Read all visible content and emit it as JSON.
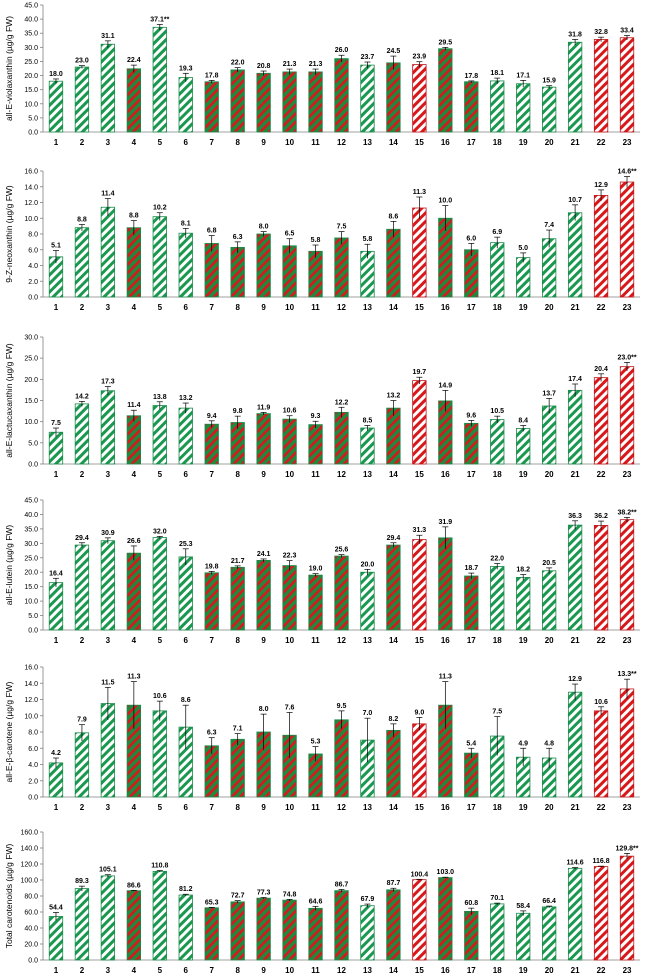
{
  "colors": {
    "green": "#1a9850",
    "red": "#d7191c",
    "edge_green": "#1a8a4a",
    "edge_red": "#c0181c",
    "hatch_green": "#1a9850",
    "hatch_red": "#d7191c"
  },
  "chart_data": [
    {
      "type": "bar",
      "ylabel": "all-E-violaxanthin (µg/g FW)",
      "ylim": [
        0,
        45
      ],
      "yticks": [
        "0.0",
        "5.0",
        "10.0",
        "15.0",
        "20.0",
        "25.0",
        "30.0",
        "35.0",
        "40.0",
        "45.0"
      ],
      "categories": [
        "1",
        "2",
        "3",
        "4",
        "5",
        "6",
        "7",
        "8",
        "9",
        "10",
        "11",
        "12",
        "13",
        "14",
        "15",
        "16",
        "17",
        "18",
        "19",
        "20",
        "21",
        "22",
        "23"
      ],
      "values": [
        18.0,
        23.0,
        31.1,
        22.4,
        37.1,
        19.3,
        17.8,
        22.0,
        20.8,
        21.3,
        21.3,
        26.0,
        23.7,
        24.5,
        23.9,
        29.5,
        17.8,
        18.1,
        17.1,
        15.9,
        31.8,
        32.8,
        33.4
      ],
      "errors": [
        0.8,
        0.5,
        1.2,
        1.3,
        1.0,
        1.5,
        0.5,
        0.8,
        0.8,
        1.0,
        1.0,
        1.2,
        1.1,
        2.4,
        1.0,
        0.5,
        0.3,
        1.0,
        1.2,
        0.5,
        1.0,
        0.8,
        0.8
      ],
      "labels": [
        "18.0",
        "23.0",
        "31.1",
        "22.4",
        "37.1**",
        "19.3",
        "17.8",
        "22.0",
        "20.8",
        "21.3",
        "21.3",
        "26.0",
        "23.7",
        "24.5",
        "23.9",
        "29.5",
        "17.8",
        "18.1",
        "17.1",
        "15.9",
        "31.8",
        "32.8",
        "33.4"
      ],
      "styles": [
        "gw",
        "gw",
        "gw",
        "gr",
        "gw",
        "gw",
        "gr",
        "gr",
        "gr",
        "gr",
        "gr",
        "gr",
        "gw",
        "gr",
        "rw",
        "gr",
        "gr",
        "gw",
        "gw",
        "gw",
        "gw",
        "rw",
        "rw"
      ]
    },
    {
      "type": "bar",
      "ylabel": "9-Z-neoxanthin (µg/g FW)",
      "ylim": [
        0,
        16
      ],
      "yticks": [
        "0.0",
        "2.0",
        "4.0",
        "6.0",
        "8.0",
        "10.0",
        "12.0",
        "14.0",
        "16.0"
      ],
      "categories": [
        "1",
        "2",
        "3",
        "4",
        "5",
        "6",
        "7",
        "8",
        "9",
        "10",
        "11",
        "12",
        "13",
        "14",
        "15",
        "16",
        "17",
        "18",
        "19",
        "20",
        "21",
        "22",
        "23"
      ],
      "values": [
        5.1,
        8.8,
        11.4,
        8.8,
        10.2,
        8.1,
        6.8,
        6.3,
        8.0,
        6.5,
        5.8,
        7.5,
        5.8,
        8.6,
        11.3,
        10.0,
        6.0,
        6.9,
        5.0,
        7.4,
        10.7,
        12.9,
        14.6
      ],
      "errors": [
        0.8,
        0.4,
        1.1,
        0.9,
        0.5,
        0.6,
        1.0,
        0.7,
        0.3,
        0.9,
        0.8,
        0.8,
        0.9,
        1.0,
        1.4,
        1.6,
        0.8,
        0.7,
        0.6,
        1.1,
        1.0,
        0.7,
        0.7
      ],
      "labels": [
        "5.1",
        "8.8",
        "11.4",
        "8.8",
        "10.2",
        "8.1",
        "6.8",
        "6.3",
        "8.0",
        "6.5",
        "5.8",
        "7.5",
        "5.8",
        "8.6",
        "11.3",
        "10.0",
        "6.0",
        "6.9",
        "5.0",
        "7.4",
        "10.7",
        "12.9",
        "14.6**"
      ],
      "styles": [
        "gw",
        "gw",
        "gw",
        "gr",
        "gw",
        "gw",
        "gr",
        "gr",
        "gr",
        "gr",
        "gr",
        "gr",
        "gw",
        "gr",
        "rw",
        "gr",
        "gr",
        "gw",
        "gw",
        "gw",
        "gw",
        "rw",
        "rw"
      ]
    },
    {
      "type": "bar",
      "ylabel": "all-E-lactucaxanthin (µg/g FW)",
      "ylim": [
        0,
        30
      ],
      "yticks": [
        "0.0",
        "5.0",
        "10.0",
        "15.0",
        "20.0",
        "25.0",
        "30.0"
      ],
      "categories": [
        "1",
        "2",
        "3",
        "4",
        "5",
        "6",
        "7",
        "8",
        "9",
        "10",
        "11",
        "12",
        "13",
        "14",
        "15",
        "16",
        "17",
        "18",
        "19",
        "20",
        "21",
        "22",
        "23"
      ],
      "values": [
        7.5,
        14.2,
        17.3,
        11.4,
        13.8,
        13.2,
        9.4,
        9.8,
        11.9,
        10.6,
        9.3,
        12.2,
        8.5,
        13.2,
        19.7,
        14.9,
        9.6,
        10.5,
        8.4,
        13.7,
        17.4,
        20.4,
        23.0
      ],
      "errors": [
        1.0,
        0.6,
        1.0,
        1.3,
        0.9,
        1.2,
        0.8,
        1.5,
        0.3,
        0.8,
        0.8,
        1.2,
        0.6,
        1.8,
        0.8,
        2.5,
        0.7,
        0.8,
        0.7,
        1.8,
        1.5,
        0.9,
        1.0
      ],
      "labels": [
        "7.5",
        "14.2",
        "17.3",
        "11.4",
        "13.8",
        "13.2",
        "9.4",
        "9.8",
        "11.9",
        "10.6",
        "9.3",
        "12.2",
        "8.5",
        "13.2",
        "19.7",
        "14.9",
        "9.6",
        "10.5",
        "8.4",
        "13.7",
        "17.4",
        "20.4",
        "23.0**"
      ],
      "styles": [
        "gw",
        "gw",
        "gw",
        "gr",
        "gw",
        "gw",
        "gr",
        "gr",
        "gr",
        "gr",
        "gr",
        "gr",
        "gw",
        "gr",
        "rw",
        "gr",
        "gr",
        "gw",
        "gw",
        "gw",
        "gw",
        "rw",
        "rw"
      ]
    },
    {
      "type": "bar",
      "ylabel": "all-E-lutein (µg/g FW)",
      "ylim": [
        0,
        45
      ],
      "yticks": [
        "0.0",
        "5.0",
        "10.0",
        "15.0",
        "20.0",
        "25.0",
        "30.0",
        "35.0",
        "40.0",
        "45.0"
      ],
      "categories": [
        "1",
        "2",
        "3",
        "4",
        "5",
        "6",
        "7",
        "8",
        "9",
        "10",
        "11",
        "12",
        "13",
        "14",
        "15",
        "16",
        "17",
        "18",
        "19",
        "20",
        "21",
        "22",
        "23"
      ],
      "values": [
        16.4,
        29.4,
        30.9,
        26.6,
        32.0,
        25.3,
        19.8,
        21.7,
        24.1,
        22.3,
        19.0,
        25.6,
        20.0,
        29.4,
        31.3,
        31.9,
        18.7,
        22.0,
        18.2,
        20.5,
        36.3,
        36.2,
        38.2
      ],
      "errors": [
        1.5,
        0.8,
        1.0,
        2.5,
        0.4,
        2.8,
        0.5,
        0.5,
        0.5,
        1.7,
        0.5,
        0.5,
        1.0,
        0.8,
        1.5,
        3.8,
        1.0,
        1.0,
        1.0,
        1.0,
        1.5,
        1.5,
        0.8
      ],
      "labels": [
        "16.4",
        "29.4",
        "30.9",
        "26.6",
        "32.0",
        "25.3",
        "19.8",
        "21.7",
        "24.1",
        "22.3",
        "19.0",
        "25.6",
        "20.0",
        "29.4",
        "31.3",
        "31.9",
        "18.7",
        "22.0",
        "18.2",
        "20.5",
        "36.3",
        "36.2",
        "38.2**"
      ],
      "styles": [
        "gw",
        "gw",
        "gw",
        "gr",
        "gw",
        "gw",
        "gr",
        "gr",
        "gr",
        "gr",
        "gr",
        "gr",
        "gw",
        "gr",
        "rw",
        "gr",
        "gr",
        "gw",
        "gw",
        "gw",
        "gw",
        "rw",
        "rw"
      ]
    },
    {
      "type": "bar",
      "ylabel": "all-E-β-carotene (µg/g FW)",
      "ylim": [
        0,
        16
      ],
      "yticks": [
        "0.0",
        "2.0",
        "4.0",
        "6.0",
        "8.0",
        "10.0",
        "12.0",
        "14.0",
        "16.0"
      ],
      "categories": [
        "1",
        "2",
        "3",
        "4",
        "5",
        "6",
        "7",
        "8",
        "9",
        "10",
        "11",
        "12",
        "13",
        "14",
        "15",
        "16",
        "17",
        "18",
        "19",
        "20",
        "21",
        "22",
        "23"
      ],
      "values": [
        4.2,
        7.9,
        11.5,
        11.3,
        10.6,
        8.6,
        6.3,
        7.1,
        8.0,
        7.6,
        5.3,
        9.5,
        7.0,
        8.2,
        9.0,
        11.3,
        5.4,
        7.5,
        4.9,
        4.8,
        12.9,
        10.6,
        13.3
      ],
      "errors": [
        0.6,
        1.0,
        2.0,
        2.9,
        1.2,
        2.7,
        1.0,
        0.7,
        2.2,
        2.8,
        0.9,
        1.1,
        2.7,
        0.8,
        0.8,
        2.9,
        0.6,
        2.4,
        1.1,
        1.2,
        1.0,
        0.5,
        1.2
      ],
      "labels": [
        "4.2",
        "7.9",
        "11.5",
        "11.3",
        "10.6",
        "8.6",
        "6.3",
        "7.1",
        "8.0",
        "7.6",
        "5.3",
        "9.5",
        "7.0",
        "8.2",
        "9.0",
        "11.3",
        "5.4",
        "7.5",
        "4.9",
        "4.8",
        "12.9",
        "10.6",
        "13.3**"
      ],
      "styles": [
        "gw",
        "gw",
        "gw",
        "gr",
        "gw",
        "gw",
        "gr",
        "gr",
        "gr",
        "gr",
        "gr",
        "gr",
        "gw",
        "gr",
        "rw",
        "gr",
        "gr",
        "gw",
        "gw",
        "gw",
        "gw",
        "rw",
        "rw"
      ]
    },
    {
      "type": "bar",
      "ylabel": "Total carotenoids (µg/g FW)",
      "ylim": [
        0,
        160
      ],
      "yticks": [
        "0.0",
        "20.0",
        "40.0",
        "60.0",
        "80.0",
        "100.0",
        "120.0",
        "140.0",
        "160.0"
      ],
      "categories": [
        "1",
        "2",
        "3",
        "4",
        "5",
        "6",
        "7",
        "8",
        "9",
        "10",
        "11",
        "12",
        "13",
        "14",
        "15",
        "16",
        "17",
        "18",
        "19",
        "20",
        "21",
        "22",
        "23"
      ],
      "values": [
        54.4,
        89.3,
        105.1,
        86.6,
        110.8,
        81.2,
        65.3,
        72.7,
        77.3,
        74.8,
        64.6,
        86.7,
        67.9,
        87.7,
        100.4,
        103.0,
        60.8,
        70.1,
        58.4,
        66.4,
        114.6,
        116.8,
        129.8
      ],
      "errors": [
        5.0,
        3.0,
        1.5,
        0.5,
        1.0,
        1.0,
        0.5,
        1.5,
        0.8,
        1.0,
        2.5,
        1.5,
        2.0,
        2.0,
        0.5,
        0.5,
        4.0,
        1.0,
        3.0,
        1.0,
        1.0,
        0.5,
        3.5
      ],
      "labels": [
        "54.4",
        "89.3",
        "105.1",
        "86.6",
        "110.8",
        "81.2",
        "65.3",
        "72.7",
        "77.3",
        "74.8",
        "64.6",
        "86.7",
        "67.9",
        "87.7",
        "100.4",
        "103.0",
        "60.8",
        "70.1",
        "58.4",
        "66.4",
        "114.6",
        "116.8",
        "129.8**"
      ],
      "styles": [
        "gw",
        "gw",
        "gw",
        "gr",
        "gw",
        "gw",
        "gr",
        "gr",
        "gr",
        "gr",
        "gr",
        "gr",
        "gw",
        "gr",
        "rw",
        "gr",
        "gr",
        "gw",
        "gw",
        "gw",
        "gw",
        "rw",
        "rw"
      ]
    }
  ]
}
